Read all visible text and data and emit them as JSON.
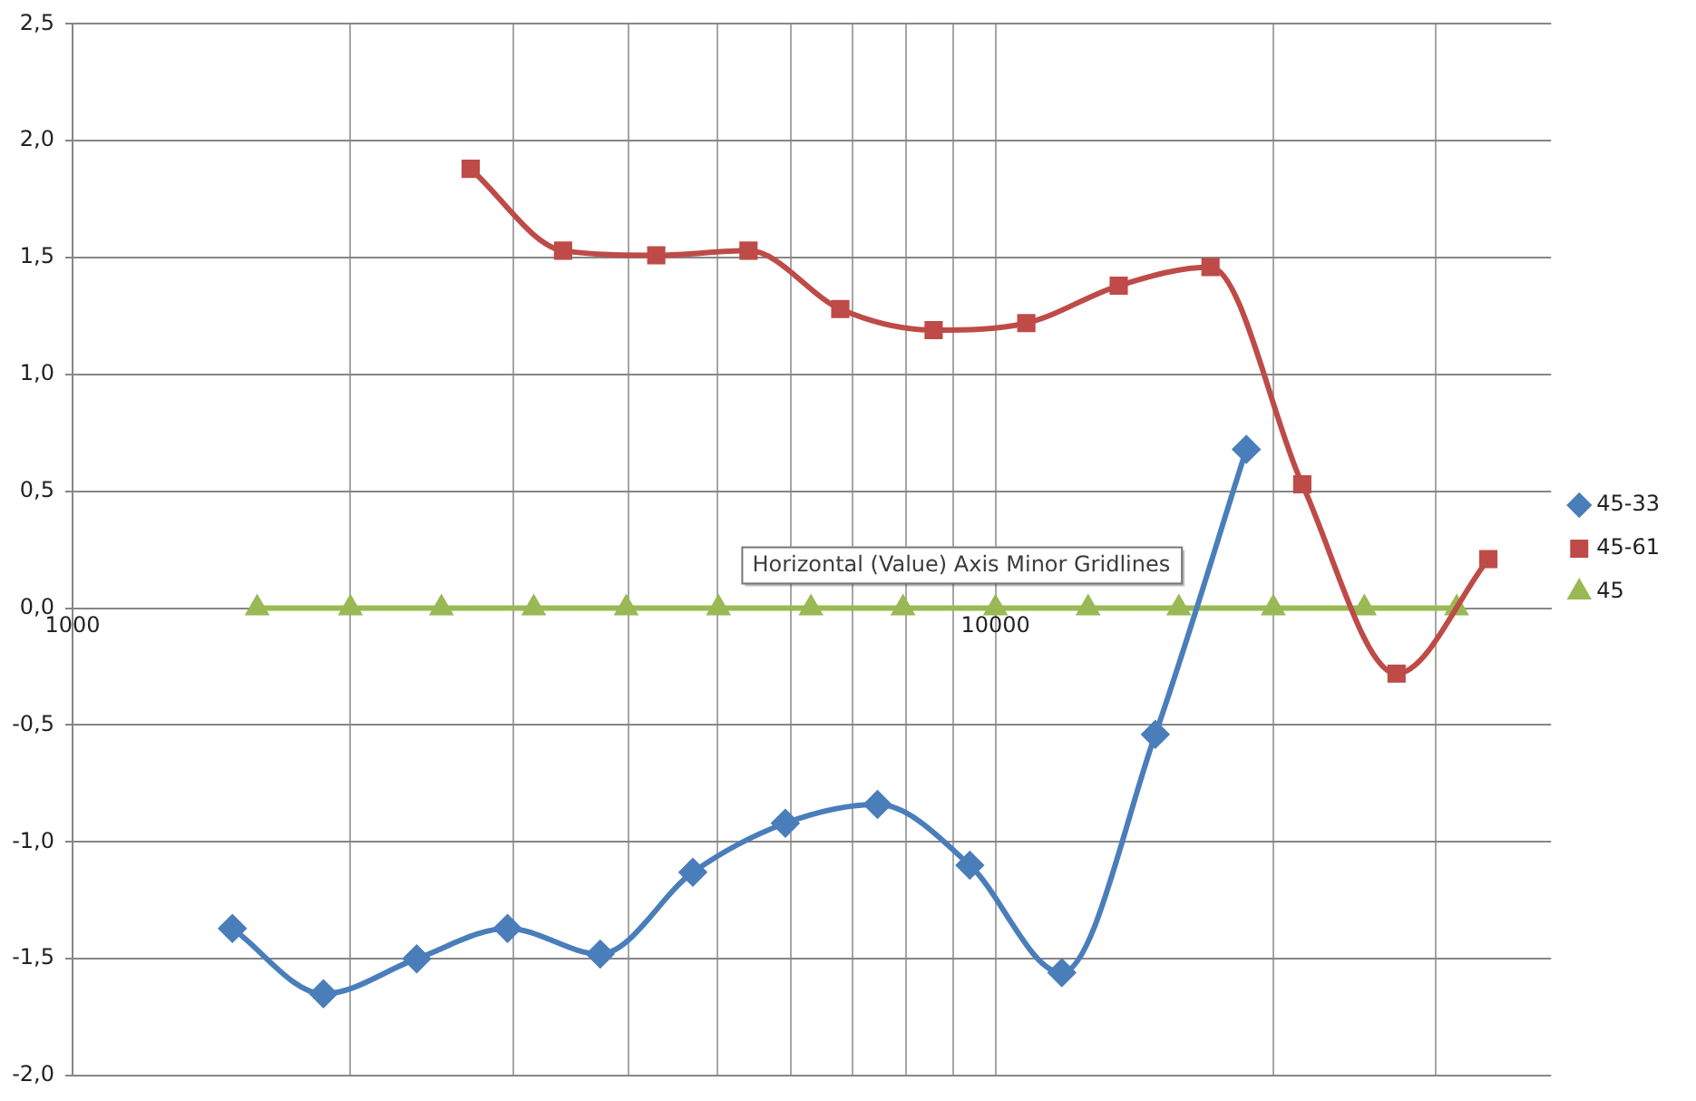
{
  "chart_data": {
    "type": "line",
    "log": "x",
    "xlim": [
      1000,
      40000
    ],
    "xticks": [
      1000,
      {
        "value": 2000,
        "label": null
      },
      {
        "value": 3000,
        "label": null
      },
      {
        "value": 4000,
        "label": null
      },
      {
        "value": 5000,
        "label": null
      },
      {
        "value": 6000,
        "label": null
      },
      {
        "value": 7000,
        "label": null
      },
      {
        "value": 8000,
        "label": null
      },
      {
        "value": 9000,
        "label": null
      },
      10000,
      {
        "value": 20000,
        "label": null
      },
      {
        "value": 30000,
        "label": null
      }
    ],
    "ylim": [
      -2.0,
      2.5
    ],
    "yticks": [
      {
        "value": -2.0,
        "label": "-2,0"
      },
      {
        "value": -1.5,
        "label": "-1,5"
      },
      {
        "value": -1.0,
        "label": "-1,0"
      },
      {
        "value": -0.5,
        "label": "-0,5"
      },
      {
        "value": 0.0,
        "label": "0,0"
      },
      {
        "value": 0.5,
        "label": "0,5"
      },
      {
        "value": 1.0,
        "label": "1,0"
      },
      {
        "value": 1.5,
        "label": "1,5"
      },
      {
        "value": 2.0,
        "label": "2,0"
      },
      {
        "value": 2.5,
        "label": "2,5"
      }
    ],
    "grid": true,
    "legend": "right",
    "annotations": [
      "Horizontal (Value) Axis Minor Gridlines"
    ],
    "series": [
      {
        "name": "45-33",
        "color": "#4a7ebb",
        "marker": "diamond",
        "x": [
          1490,
          1870,
          2360,
          2960,
          3730,
          4700,
          5920,
          7450,
          9380,
          11800,
          14900,
          18700
        ],
        "values": [
          -1.37,
          -1.65,
          -1.5,
          -1.37,
          -1.48,
          -1.13,
          -0.92,
          -0.84,
          -1.1,
          -1.56,
          -0.54,
          0.68
        ]
      },
      {
        "name": "45-61",
        "color": "#be4b48",
        "marker": "square",
        "x": [
          2700,
          3400,
          4290,
          5400,
          6790,
          8570,
          10800,
          13600,
          17100,
          21500,
          27200,
          34200
        ],
        "values": [
          1.88,
          1.53,
          1.51,
          1.53,
          1.28,
          1.19,
          1.22,
          1.38,
          1.46,
          0.53,
          -0.28,
          0.21
        ]
      },
      {
        "name": "45",
        "color": "#98b954",
        "marker": "triangle",
        "x": [
          1585,
          2000,
          2510,
          3160,
          3980,
          5010,
          6310,
          7940,
          10000,
          12600,
          15800,
          20000,
          25100,
          31600
        ],
        "values": [
          0,
          0,
          0,
          0,
          0,
          0,
          0,
          0,
          0,
          0,
          0,
          0,
          0,
          0
        ]
      }
    ]
  }
}
